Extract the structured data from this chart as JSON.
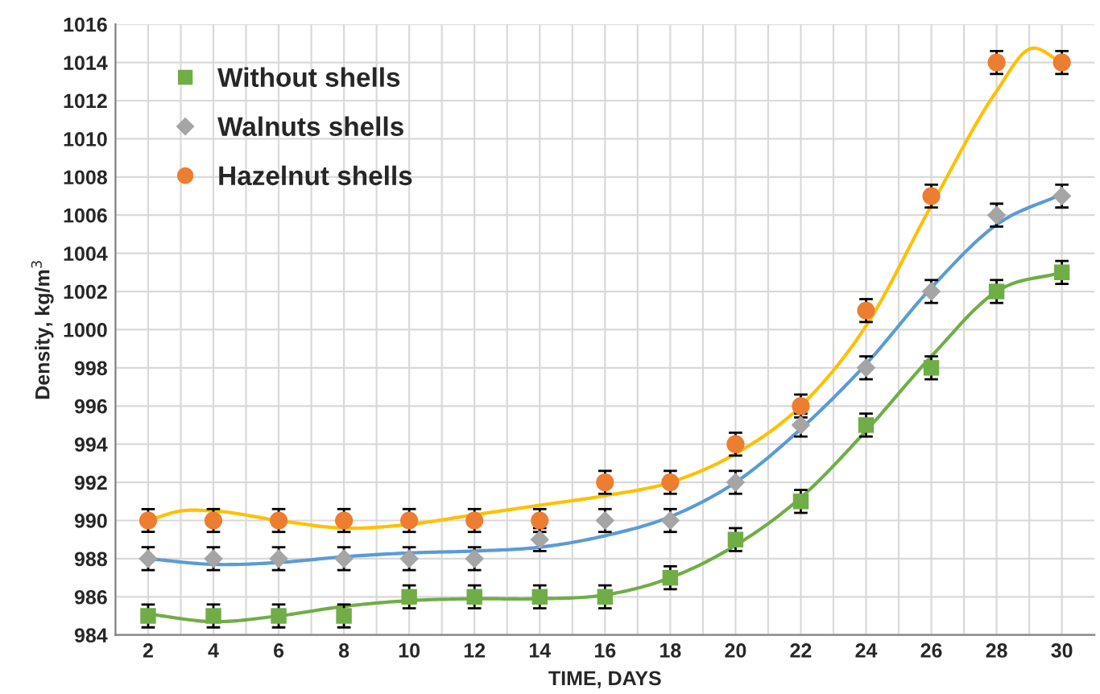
{
  "chart_data": {
    "type": "scatter",
    "xlabel": "TIME, DAYS",
    "ylabel": "Density, kg/m$^{3}$",
    "xlim": [
      1,
      31
    ],
    "ylim": [
      984,
      1016
    ],
    "xticks": [
      2,
      {
        "value": 3,
        "label": null
      },
      4,
      {
        "value": 5,
        "label": null
      },
      6,
      {
        "value": 7,
        "label": null
      },
      8,
      {
        "value": 9,
        "label": null
      },
      10,
      {
        "value": 11,
        "label": null
      },
      12,
      {
        "value": 13,
        "label": null
      },
      14,
      {
        "value": 15,
        "label": null
      },
      16,
      {
        "value": 17,
        "label": null
      },
      18,
      {
        "value": 19,
        "label": null
      },
      20,
      {
        "value": 21,
        "label": null
      },
      22,
      {
        "value": 23,
        "label": null
      },
      24,
      {
        "value": 25,
        "label": null
      },
      26,
      {
        "value": 27,
        "label": null
      },
      28,
      {
        "value": 29,
        "label": null
      },
      30
    ],
    "yticks": [
      984,
      986,
      988,
      990,
      992,
      994,
      996,
      998,
      1000,
      1002,
      1004,
      1006,
      1008,
      1010,
      1012,
      1014,
      1016
    ],
    "grid": true,
    "legend": "top left",
    "x": [
      2,
      4,
      6,
      8,
      10,
      12,
      14,
      16,
      18,
      20,
      22,
      24,
      26,
      28,
      30
    ],
    "series": [
      {
        "name": "Without shells",
        "marker": "square",
        "color": "#70ad47",
        "values": [
          985,
          985,
          985,
          985,
          986,
          986,
          986,
          986,
          987,
          989,
          991,
          995,
          998,
          1002,
          1003
        ],
        "errors": [
          0.6,
          0.6,
          0.6,
          0.6,
          0.6,
          0.6,
          0.6,
          0.6,
          0.6,
          0.6,
          0.6,
          0.6,
          0.6,
          0.6,
          0.6
        ]
      },
      {
        "name": "Walnuts shells",
        "marker": "diamond",
        "color": "#a5a5a5",
        "values": [
          988,
          988,
          988,
          988,
          988,
          988,
          989,
          990,
          990,
          992,
          995,
          998,
          1002,
          1006,
          1007
        ],
        "errors": [
          0.6,
          0.6,
          0.6,
          0.6,
          0.6,
          0.6,
          0.6,
          0.6,
          0.6,
          0.6,
          0.6,
          0.6,
          0.6,
          0.6,
          0.6
        ]
      },
      {
        "name": "Hazelnut shells",
        "marker": "circle",
        "color": "#ed7d31",
        "values": [
          990,
          990,
          990,
          990,
          990,
          990,
          990,
          992,
          992,
          994,
          996,
          1001,
          1007,
          1014,
          1014
        ],
        "errors": [
          0.6,
          0.6,
          0.6,
          0.6,
          0.6,
          0.6,
          0.6,
          0.6,
          0.6,
          0.6,
          0.6,
          0.6,
          0.6,
          0.6,
          0.6
        ]
      },
      {
        "type": "line",
        "color": "#70ad47",
        "x": [
          2,
          4,
          6,
          8,
          10,
          12,
          14,
          16,
          18,
          20,
          22,
          24,
          26,
          28,
          30
        ],
        "values": [
          985.1,
          984.7,
          985,
          985.5,
          985.8,
          985.9,
          985.9,
          986.1,
          987,
          988.7,
          991.2,
          994.7,
          998.6,
          1002,
          1003
        ]
      },
      {
        "type": "line",
        "color": "#5b9bd5",
        "x": [
          2,
          4,
          6,
          8,
          10,
          12,
          14,
          16,
          18,
          20,
          22,
          24,
          26,
          28,
          30
        ],
        "values": [
          988,
          987.7,
          987.8,
          988.1,
          988.3,
          988.4,
          988.6,
          989.2,
          990.2,
          992,
          994.8,
          998.2,
          1002.2,
          1005.5,
          1007.1
        ]
      },
      {
        "type": "line",
        "color": "#ffc000",
        "x": [
          2,
          3,
          4,
          6,
          8,
          10,
          12,
          14,
          16,
          18,
          20,
          22,
          24,
          26,
          28,
          29,
          30
        ],
        "values": [
          990,
          990.5,
          990.5,
          990,
          989.6,
          989.8,
          990.3,
          990.8,
          991.3,
          992,
          993.5,
          996,
          1000.2,
          1006.5,
          1012.5,
          1014.7,
          1014
        ]
      }
    ]
  }
}
